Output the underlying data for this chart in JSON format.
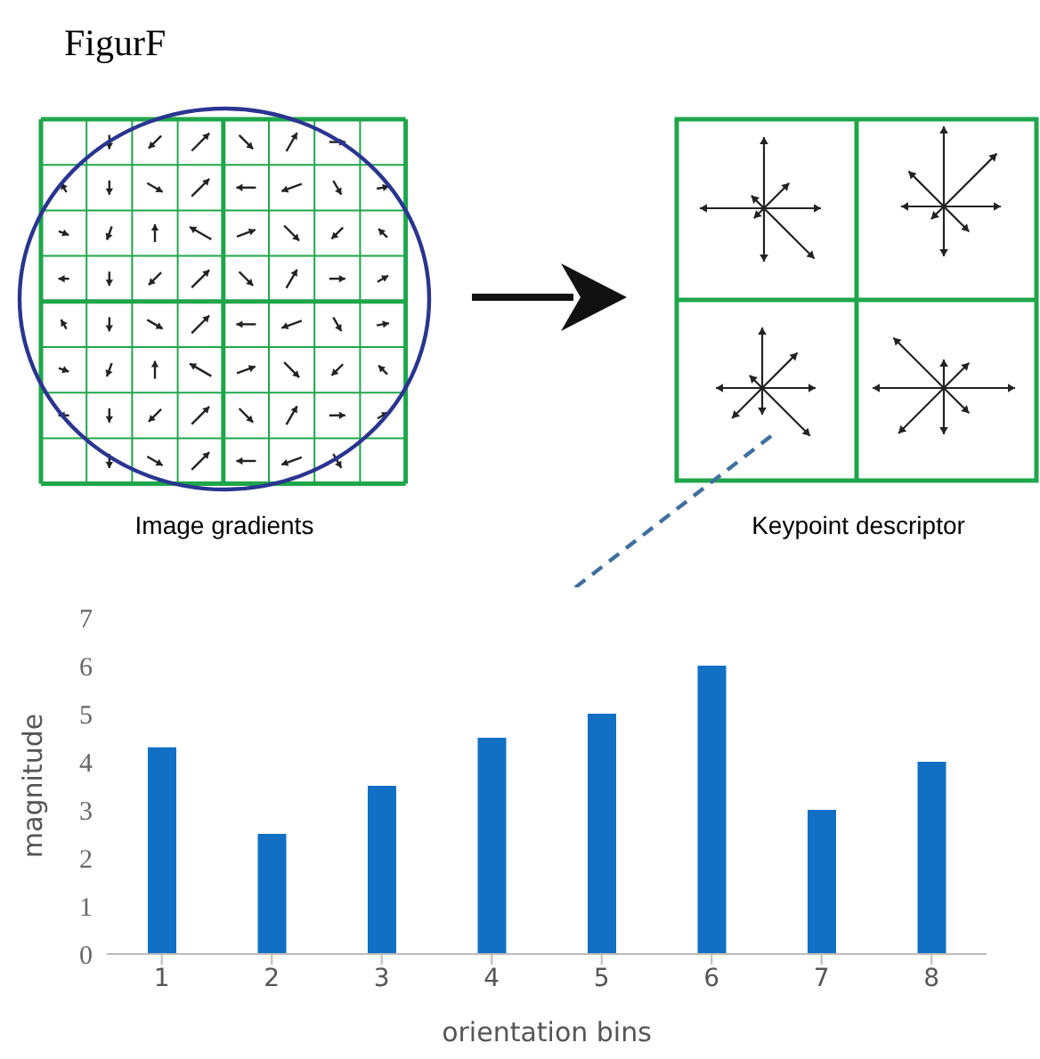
{
  "chart_data": {
    "type": "bar",
    "categories": [
      "1",
      "2",
      "3",
      "4",
      "5",
      "6",
      "7",
      "8"
    ],
    "values": [
      4.3,
      2.5,
      3.5,
      4.5,
      5,
      6,
      3,
      4
    ],
    "color": "#1170c4",
    "ylim": [
      0,
      7
    ],
    "yticks": [
      0,
      1,
      2,
      3,
      4,
      5,
      6,
      7
    ],
    "xlabel": "orientation bins",
    "ylabel": "magnitude",
    "grid": false,
    "legend": false,
    "annotations": [
      "FigurF",
      "Image gradients",
      "Keypoint descriptor"
    ]
  }
}
